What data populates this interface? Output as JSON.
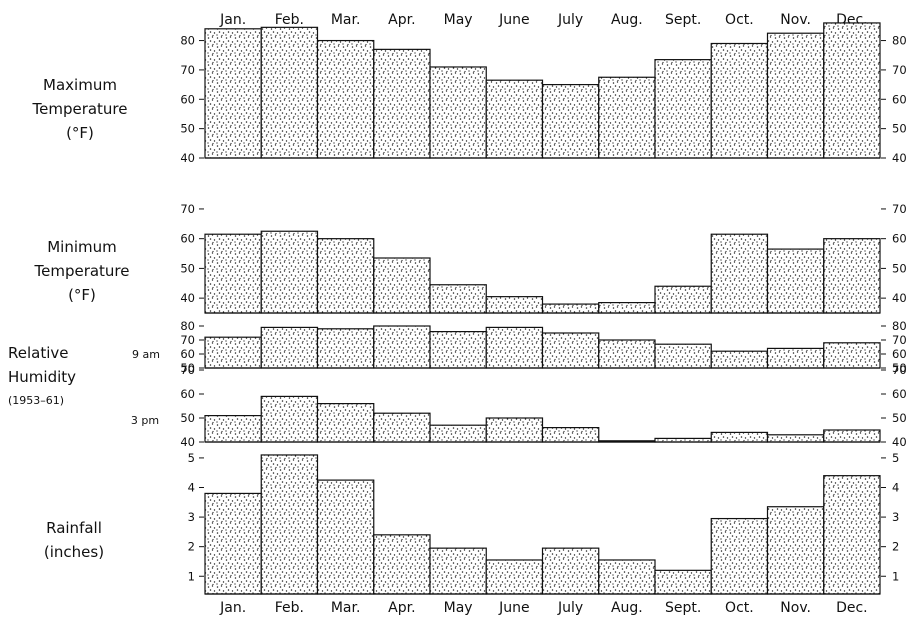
{
  "months": [
    "Jan.",
    "Feb.",
    "Mar.",
    "Apr.",
    "May",
    "June",
    "July",
    "Aug.",
    "Sept.",
    "Oct.",
    "Nov.",
    "Dec."
  ],
  "chart_data": [
    {
      "type": "bar",
      "title": "Maximum Temperature (°F)",
      "title_lines": [
        "Maximum",
        "Temperature",
        "(°F)"
      ],
      "categories": [
        "Jan.",
        "Feb.",
        "Mar.",
        "Apr.",
        "May",
        "June",
        "July",
        "Aug.",
        "Sept.",
        "Oct.",
        "Nov.",
        "Dec."
      ],
      "values": [
        84,
        84.5,
        80,
        77,
        71,
        66.5,
        65,
        67.5,
        73.5,
        79,
        82.5,
        86
      ],
      "ylim": [
        40,
        87
      ],
      "yticks": [
        40,
        50,
        60,
        70,
        80
      ]
    },
    {
      "type": "bar",
      "title": "Minimum Temperature (°F)",
      "title_lines": [
        "Minimum",
        "Temperature",
        "(°F)"
      ],
      "categories": [
        "Jan.",
        "Feb.",
        "Mar.",
        "Apr.",
        "May",
        "June",
        "July",
        "Aug.",
        "Sept.",
        "Oct.",
        "Nov.",
        "Dec."
      ],
      "values": [
        61.5,
        62.5,
        60,
        53.5,
        44.5,
        40.5,
        38,
        38.5,
        44,
        61.5,
        56.5,
        60
      ],
      "ylim": [
        35,
        72
      ],
      "yticks": [
        40,
        50,
        60,
        70
      ]
    },
    {
      "type": "bar",
      "title": "Relative Humidity (1953–61)",
      "title_lines": [
        "Relative",
        "Humidity",
        "(1953–61)"
      ],
      "series_label": "9 am",
      "categories": [
        "Jan.",
        "Feb.",
        "Mar.",
        "Apr.",
        "May",
        "June",
        "July",
        "Aug.",
        "Sept.",
        "Oct.",
        "Nov.",
        "Dec."
      ],
      "values": [
        72,
        79,
        78,
        80,
        76,
        79,
        75,
        70,
        67,
        62,
        64,
        68
      ],
      "ylim": [
        50,
        80
      ],
      "yticks": [
        50,
        60,
        70,
        80
      ]
    },
    {
      "type": "bar",
      "title": "Relative Humidity (1953–61)",
      "series_label": "3 pm",
      "categories": [
        "Jan.",
        "Feb.",
        "Mar.",
        "Apr.",
        "May",
        "June",
        "July",
        "Aug.",
        "Sept.",
        "Oct.",
        "Nov.",
        "Dec."
      ],
      "values": [
        51,
        59,
        56,
        52,
        47,
        50,
        46,
        40.5,
        41.5,
        44,
        43,
        45
      ],
      "ylim": [
        40,
        70
      ],
      "yticks": [
        40,
        50,
        60,
        70
      ]
    },
    {
      "type": "bar",
      "title": "Rainfall (inches)",
      "title_lines": [
        "Rainfall",
        "(inches)"
      ],
      "categories": [
        "Jan.",
        "Feb.",
        "Mar.",
        "Apr.",
        "May",
        "June",
        "July",
        "Aug.",
        "Sept.",
        "Oct.",
        "Nov.",
        "Dec."
      ],
      "values": [
        3.8,
        5.1,
        4.25,
        2.4,
        1.95,
        1.55,
        1.95,
        1.55,
        1.2,
        2.95,
        3.35,
        4.4
      ],
      "ylim": [
        0.4,
        5.2
      ],
      "yticks": [
        1,
        2,
        3,
        4,
        5
      ]
    }
  ]
}
